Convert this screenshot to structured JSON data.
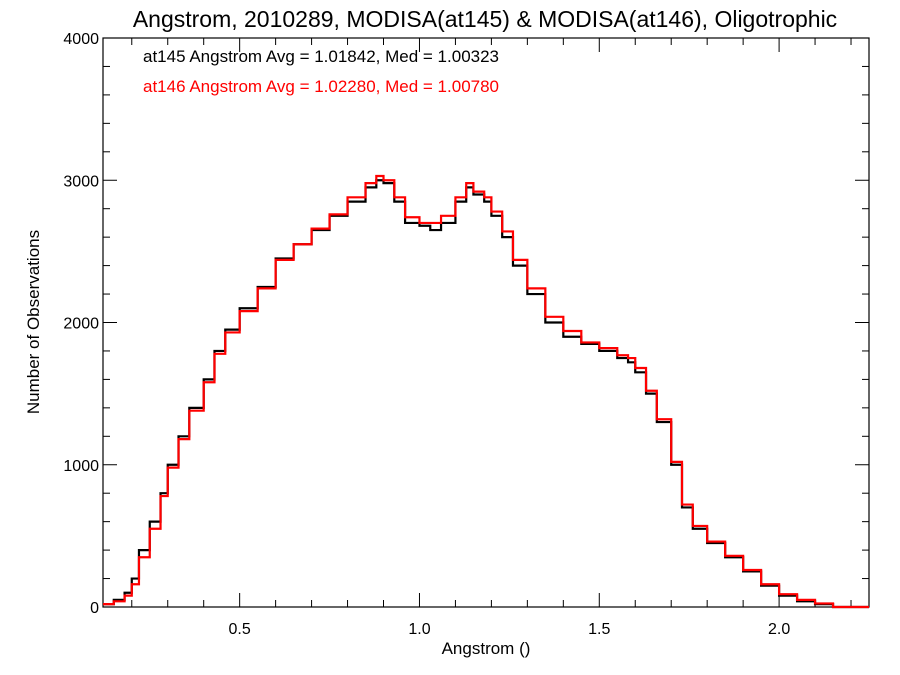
{
  "chart_data": {
    "type": "line",
    "title": "Angstrom, 2010289, MODISA(at145) & MODISA(at146), Oligotrophic",
    "xlabel": "Angstrom ()",
    "ylabel": "Number of Observations",
    "xlim": [
      0.12,
      2.25
    ],
    "ylim": [
      0,
      4000
    ],
    "grid": false,
    "x_ticks": [
      0.5,
      1.0,
      1.5,
      2.0
    ],
    "x_tick_labels": [
      "0.5",
      "1.0",
      "1.5",
      "2.0"
    ],
    "y_ticks": [
      0,
      1000,
      2000,
      3000,
      4000
    ],
    "y_tick_labels": [
      "0",
      "1000",
      "2000",
      "3000",
      "4000"
    ],
    "annotations": [
      {
        "text": "at145 Angstrom Avg = 1.01842, Med = 1.00323",
        "color": "#000000"
      },
      {
        "text": "at146 Angstrom Avg = 1.02280, Med = 1.00780",
        "color": "#ff0000"
      }
    ],
    "series": [
      {
        "color": "#000000",
        "x": [
          0.12,
          0.15,
          0.18,
          0.2,
          0.22,
          0.25,
          0.28,
          0.3,
          0.33,
          0.36,
          0.4,
          0.43,
          0.46,
          0.5,
          0.55,
          0.6,
          0.65,
          0.7,
          0.75,
          0.8,
          0.85,
          0.88,
          0.9,
          0.93,
          0.96,
          1.0,
          1.03,
          1.06,
          1.1,
          1.13,
          1.15,
          1.18,
          1.2,
          1.23,
          1.26,
          1.3,
          1.35,
          1.4,
          1.45,
          1.5,
          1.55,
          1.58,
          1.6,
          1.63,
          1.66,
          1.7,
          1.73,
          1.76,
          1.8,
          1.85,
          1.9,
          1.95,
          2.0,
          2.05,
          2.1,
          2.15,
          2.2,
          2.25
        ],
        "y": [
          20,
          50,
          100,
          200,
          400,
          600,
          800,
          1000,
          1200,
          1400,
          1600,
          1800,
          1950,
          2100,
          2250,
          2450,
          2550,
          2650,
          2750,
          2850,
          2950,
          3000,
          2980,
          2850,
          2700,
          2680,
          2650,
          2700,
          2850,
          2950,
          2900,
          2850,
          2750,
          2600,
          2400,
          2200,
          2000,
          1900,
          1850,
          1800,
          1750,
          1720,
          1650,
          1500,
          1300,
          1000,
          700,
          550,
          450,
          350,
          250,
          150,
          80,
          40,
          20,
          0,
          0,
          0
        ]
      },
      {
        "color": "#ff0000",
        "x": [
          0.12,
          0.15,
          0.18,
          0.2,
          0.22,
          0.25,
          0.28,
          0.3,
          0.33,
          0.36,
          0.4,
          0.43,
          0.46,
          0.5,
          0.55,
          0.6,
          0.65,
          0.7,
          0.75,
          0.8,
          0.85,
          0.88,
          0.9,
          0.93,
          0.96,
          1.0,
          1.03,
          1.06,
          1.1,
          1.13,
          1.15,
          1.18,
          1.2,
          1.23,
          1.26,
          1.3,
          1.35,
          1.4,
          1.45,
          1.5,
          1.55,
          1.58,
          1.6,
          1.63,
          1.66,
          1.7,
          1.73,
          1.76,
          1.8,
          1.85,
          1.9,
          1.95,
          2.0,
          2.05,
          2.1,
          2.15,
          2.2,
          2.25
        ],
        "y": [
          20,
          40,
          80,
          160,
          350,
          550,
          780,
          980,
          1180,
          1380,
          1580,
          1780,
          1930,
          2080,
          2240,
          2440,
          2550,
          2660,
          2760,
          2880,
          2980,
          3030,
          3000,
          2880,
          2740,
          2700,
          2700,
          2750,
          2880,
          2980,
          2920,
          2880,
          2780,
          2640,
          2440,
          2240,
          2040,
          1940,
          1860,
          1820,
          1770,
          1750,
          1680,
          1520,
          1320,
          1020,
          720,
          570,
          460,
          360,
          260,
          160,
          90,
          50,
          25,
          0,
          0,
          0
        ]
      }
    ]
  }
}
